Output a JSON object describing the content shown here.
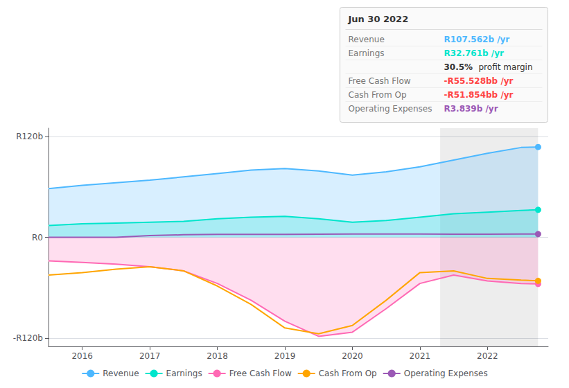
{
  "chart_data": {
    "type": "line",
    "x": [
      2015.5,
      2016.0,
      2016.5,
      2017.0,
      2017.5,
      2018.0,
      2018.5,
      2019.0,
      2019.5,
      2020.0,
      2020.5,
      2021.0,
      2021.5,
      2022.0,
      2022.5,
      2022.75
    ],
    "series": [
      {
        "name": "Revenue",
        "color": "#4db8ff",
        "type": "area",
        "values": [
          58,
          62,
          65,
          68,
          72,
          76,
          80,
          82,
          79,
          74,
          78,
          84,
          92,
          100,
          107,
          107.562
        ]
      },
      {
        "name": "Earnings",
        "color": "#00e5cc",
        "type": "area",
        "values": [
          14,
          16,
          17,
          18,
          19,
          22,
          24,
          25,
          22,
          18,
          20,
          24,
          28,
          30,
          32,
          32.761
        ]
      },
      {
        "name": "Free Cash Flow",
        "color": "#ff69b4",
        "type": "area",
        "values": [
          -28,
          -30,
          -32,
          -35,
          -40,
          -55,
          -75,
          -100,
          -118,
          -113,
          -85,
          -55,
          -45,
          -52,
          -55,
          -55.528
        ]
      },
      {
        "name": "Cash From Op",
        "color": "#ffa500",
        "type": "line",
        "values": [
          -45,
          -42,
          -38,
          -35,
          -40,
          -58,
          -80,
          -108,
          -115,
          -105,
          -75,
          -42,
          -40,
          -49,
          -51,
          -51.854
        ]
      },
      {
        "name": "Operating Expenses",
        "color": "#9b59b6",
        "type": "line",
        "values": [
          0,
          0,
          0,
          2,
          3,
          3.5,
          3.5,
          3.5,
          3.8,
          4,
          4,
          4,
          3.8,
          3.8,
          3.839,
          3.839
        ]
      }
    ],
    "xlim": [
      2015.5,
      2022.9
    ],
    "xticks": [
      2016,
      2017,
      2018,
      2019,
      2020,
      2021,
      2022
    ],
    "ylim": [
      -130,
      130
    ],
    "yticks": [
      {
        "value": -120,
        "label": "-R120b"
      },
      {
        "value": 0,
        "label": "R0"
      },
      {
        "value": 120,
        "label": "R120b"
      }
    ],
    "grid": true,
    "legend": "bottom",
    "highlight_x": [
      2021.3,
      2022.75
    ],
    "info_box": {
      "title": "Jun 30 2022",
      "rows": [
        {
          "label": "Revenue",
          "value": "R107.562b /yr",
          "color": "#4db8ff"
        },
        {
          "label": "Earnings",
          "value": "R32.761b /yr",
          "color": "#00e5cc"
        },
        {
          "value": "30.5%",
          "text": "profit margin"
        },
        {
          "label": "Free Cash Flow",
          "value": "-R55.528bb /yr",
          "color": "#ff4444"
        },
        {
          "label": "Cash From Op",
          "value": "-R51.854bb /yr",
          "color": "#ff4444"
        },
        {
          "label": "Operating Expenses",
          "value": "R3.839b /yr",
          "color": "#9b59b6"
        }
      ]
    }
  }
}
